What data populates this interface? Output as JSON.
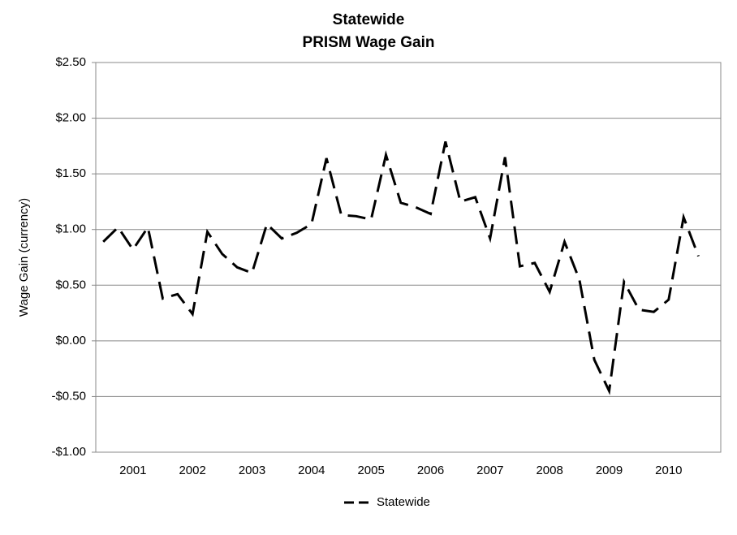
{
  "chart_data": {
    "type": "line",
    "title": "Statewide",
    "subtitle": "PRISM Wage Gain",
    "y_label": "Wage Gain (currency)",
    "categories": [
      null,
      null,
      "2001",
      null,
      null,
      null,
      "2002",
      null,
      null,
      null,
      "2003",
      null,
      null,
      null,
      "2004",
      null,
      null,
      null,
      "2005",
      null,
      null,
      null,
      "2006",
      null,
      null,
      null,
      "2007",
      null,
      null,
      null,
      "2008",
      null,
      null,
      null,
      "2009",
      null,
      null,
      null,
      "2010",
      null,
      null,
      null
    ],
    "series": [
      {
        "name": "Statewide",
        "color": "#000000",
        "values": [
          0.89,
          1.02,
          0.82,
          1.02,
          0.38,
          0.42,
          0.24,
          0.98,
          0.78,
          0.66,
          0.61,
          1.05,
          0.92,
          0.97,
          1.05,
          1.64,
          1.13,
          1.12,
          1.09,
          1.67,
          1.24,
          1.2,
          1.14,
          1.79,
          1.25,
          1.29,
          0.92,
          1.65,
          0.67,
          0.7,
          0.44,
          0.89,
          0.55,
          -0.17,
          -0.45,
          0.53,
          0.28,
          0.26,
          0.37,
          1.11,
          0.76,
          null
        ]
      }
    ],
    "ylim": [
      -1.0,
      2.5
    ],
    "yticks": [
      {
        "value": -1.0,
        "label": "-$1.00"
      },
      {
        "value": -0.5,
        "label": "-$0.50"
      },
      {
        "value": 0,
        "label": "$0.00"
      },
      {
        "value": 0.5,
        "label": "$0.50"
      },
      {
        "value": 1.0,
        "label": "$1.00"
      },
      {
        "value": 1.5,
        "label": "$1.50"
      },
      {
        "value": 2.0,
        "label": "$2.00"
      },
      {
        "value": 2.5,
        "label": "$2.50"
      }
    ],
    "grid": true,
    "legend": "bottom",
    "dashed": true
  }
}
